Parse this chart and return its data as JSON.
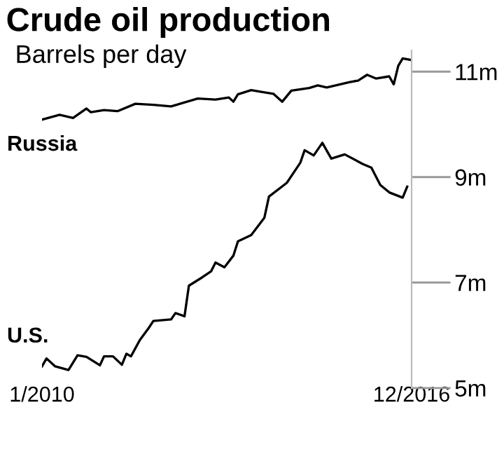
{
  "chart_data": {
    "type": "line",
    "title": "Crude oil production",
    "subtitle": "Barrels per day",
    "xlim": [
      "2010-01",
      "2016-12"
    ],
    "xticks": [
      {
        "value": "2010-01",
        "label": "1/2010"
      },
      {
        "value": "2016-12",
        "label": "12/2016"
      }
    ],
    "ylim": [
      5,
      11.4
    ],
    "yticks": [
      {
        "value": 5,
        "label": "5m"
      },
      {
        "value": 7,
        "label": "7m"
      },
      {
        "value": 9,
        "label": "9m"
      },
      {
        "value": 11,
        "label": "11m"
      }
    ],
    "grid": false,
    "legend": false,
    "marker": "none",
    "line_style": "solid",
    "series": [
      {
        "name": "Russia",
        "color": "#000000",
        "x": [
          "2010-01",
          "2010-05",
          "2010-08",
          "2010-11",
          "2010-12",
          "2011-03",
          "2011-06",
          "2011-10",
          "2012-02",
          "2012-06",
          "2012-12",
          "2013-04",
          "2013-07",
          "2013-08",
          "2013-09",
          "2013-12",
          "2014-02",
          "2014-05",
          "2014-07",
          "2014-09",
          "2015-01",
          "2015-03",
          "2015-05",
          "2015-10",
          "2015-12",
          "2016-02",
          "2016-04",
          "2016-07",
          "2016-08",
          "2016-09",
          "2016-10",
          "2016-12"
        ],
        "values": [
          10.09,
          10.18,
          10.12,
          10.3,
          10.23,
          10.27,
          10.25,
          10.39,
          10.37,
          10.34,
          10.49,
          10.47,
          10.51,
          10.43,
          10.57,
          10.65,
          10.62,
          10.58,
          10.43,
          10.64,
          10.69,
          10.74,
          10.7,
          10.8,
          10.83,
          10.94,
          10.87,
          10.91,
          10.76,
          11.11,
          11.25,
          11.22
        ]
      },
      {
        "name": "U.S.",
        "color": "#000000",
        "x": [
          "2010-01",
          "2010-02",
          "2010-04",
          "2010-07",
          "2010-09",
          "2010-11",
          "2011-02",
          "2011-03",
          "2011-05",
          "2011-07",
          "2011-08",
          "2011-09",
          "2011-11",
          "2012-01",
          "2012-02",
          "2012-06",
          "2012-07",
          "2012-09",
          "2012-10",
          "2013-01",
          "2013-03",
          "2013-04",
          "2013-06",
          "2013-08",
          "2013-09",
          "2013-12",
          "2014-03",
          "2014-04",
          "2014-08",
          "2014-11",
          "2014-12",
          "2015-02",
          "2015-04",
          "2015-06",
          "2015-09",
          "2016-01",
          "2016-03",
          "2016-05",
          "2016-07",
          "2016-10",
          "2016-11"
        ],
        "values": [
          5.41,
          5.56,
          5.41,
          5.34,
          5.62,
          5.59,
          5.43,
          5.6,
          5.6,
          5.44,
          5.65,
          5.6,
          5.91,
          6.14,
          6.27,
          6.3,
          6.42,
          6.36,
          6.94,
          7.1,
          7.21,
          7.38,
          7.29,
          7.51,
          7.78,
          7.9,
          8.23,
          8.63,
          8.89,
          9.27,
          9.51,
          9.41,
          9.65,
          9.35,
          9.43,
          9.25,
          9.18,
          8.85,
          8.71,
          8.61,
          8.82
        ]
      }
    ]
  }
}
